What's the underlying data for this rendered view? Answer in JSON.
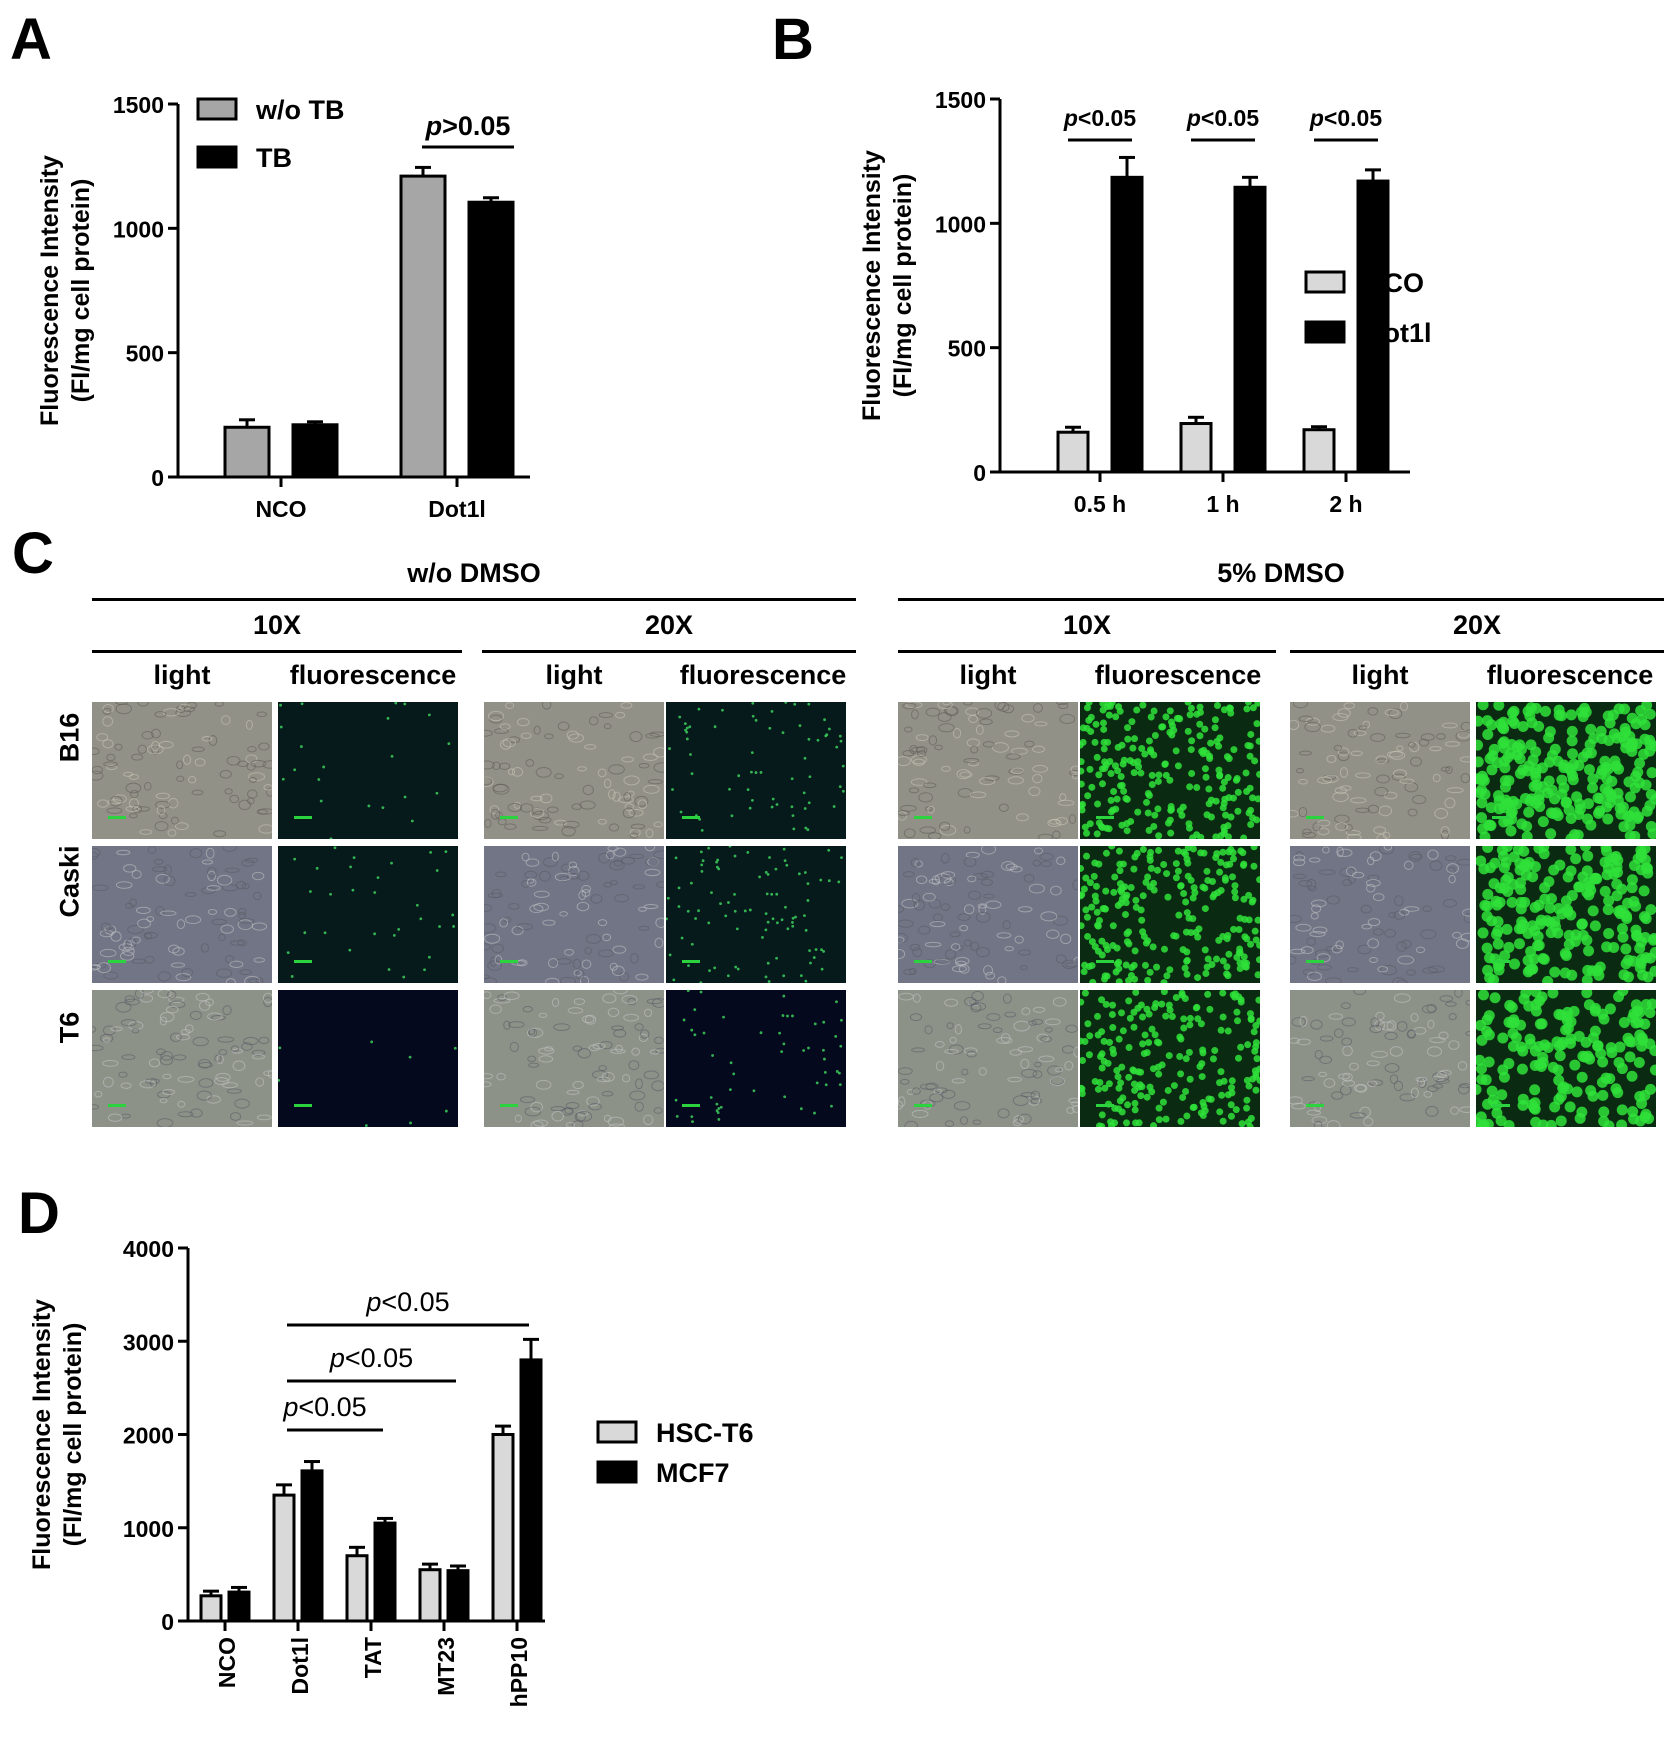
{
  "panels": {
    "A": {
      "label": "A",
      "chart_data": {
        "type": "bar",
        "categories": [
          "NCO",
          "Dot1l"
        ],
        "series": [
          {
            "name": "w/o TB",
            "values": [
              200,
              1210
            ],
            "errors": [
              30,
              35
            ],
            "color": "#a6a6a6"
          },
          {
            "name": "TB",
            "values": [
              210,
              1105
            ],
            "errors": [
              12,
              18
            ],
            "color": "#000000"
          }
        ],
        "ylabel_line1": "Fluorescence Intensity",
        "ylabel_line2": "(FI/mg cell protein)",
        "ylim": [
          0,
          1500
        ],
        "yticks": [
          "0",
          "500",
          "1000",
          "1500"
        ],
        "annotations": [
          {
            "text_italic": "p",
            "text": ">0.05",
            "from": "Dot1l"
          }
        ],
        "legend": "top-left"
      }
    },
    "B": {
      "label": "B",
      "chart_data": {
        "type": "bar",
        "categories": [
          "0.5 h",
          "1 h",
          "2 h"
        ],
        "series": [
          {
            "name": "NCO",
            "values": [
              160,
              195,
              170
            ],
            "errors": [
              20,
              25,
              12
            ],
            "color": "#d9d9d9"
          },
          {
            "name": "Dot1l",
            "values": [
              1185,
              1145,
              1170
            ],
            "errors": [
              80,
              40,
              45
            ],
            "color": "#000000"
          }
        ],
        "ylabel_line1": "Fluorescence Intensity",
        "ylabel_line2": "(FI/mg cell protein)",
        "ylim": [
          0,
          1500
        ],
        "yticks": [
          "0",
          "500",
          "1000",
          "1500"
        ],
        "annotations": [
          {
            "text_italic": "p",
            "text": "<0.05"
          },
          {
            "text_italic": "p",
            "text": "<0.05"
          },
          {
            "text_italic": "p",
            "text": "<0.05"
          }
        ],
        "legend": "right"
      }
    },
    "C": {
      "label": "C",
      "groups": [
        {
          "title": "w/o DMSO",
          "mags": [
            {
              "title": "10X",
              "cols": [
                "light",
                "fluorescence"
              ]
            },
            {
              "title": "20X",
              "cols": [
                "light",
                "fluorescence"
              ]
            }
          ]
        },
        {
          "title": "5% DMSO",
          "mags": [
            {
              "title": "10X",
              "cols": [
                "light",
                "fluorescence"
              ]
            },
            {
              "title": "20X",
              "cols": [
                "light",
                "fluorescence"
              ]
            }
          ]
        }
      ],
      "rows": [
        "B16",
        "Caski",
        "T6"
      ]
    },
    "D": {
      "label": "D",
      "chart_data": {
        "type": "bar",
        "categories": [
          "NCO",
          "Dot1l",
          "TAT",
          "MT23",
          "hPP10"
        ],
        "series": [
          {
            "name": "HSC-T6",
            "values": [
              270,
              1350,
              700,
              550,
              2000
            ],
            "errors": [
              50,
              110,
              90,
              60,
              90
            ],
            "color": "#d9d9d9"
          },
          {
            "name": "MCF7",
            "values": [
              310,
              1610,
              1050,
              540,
              2800
            ],
            "errors": [
              50,
              100,
              50,
              50,
              220
            ],
            "color": "#000000"
          }
        ],
        "ylabel_line1": "Fluorescence Intensity",
        "ylabel_line2": "(FI/mg cell protein)",
        "ylim": [
          0,
          4000
        ],
        "yticks": [
          "0",
          "1000",
          "2000",
          "3000",
          "4000"
        ],
        "annotations": [
          {
            "text_italic": "p",
            "text": "<0.05",
            "from": "Dot1l",
            "to": "TAT"
          },
          {
            "text_italic": "p",
            "text": "<0.05",
            "from": "Dot1l",
            "to": "MT23"
          },
          {
            "text_italic": "p",
            "text": "<0.05",
            "from": "Dot1l",
            "to": "hPP10"
          }
        ],
        "legend": "right"
      }
    }
  }
}
